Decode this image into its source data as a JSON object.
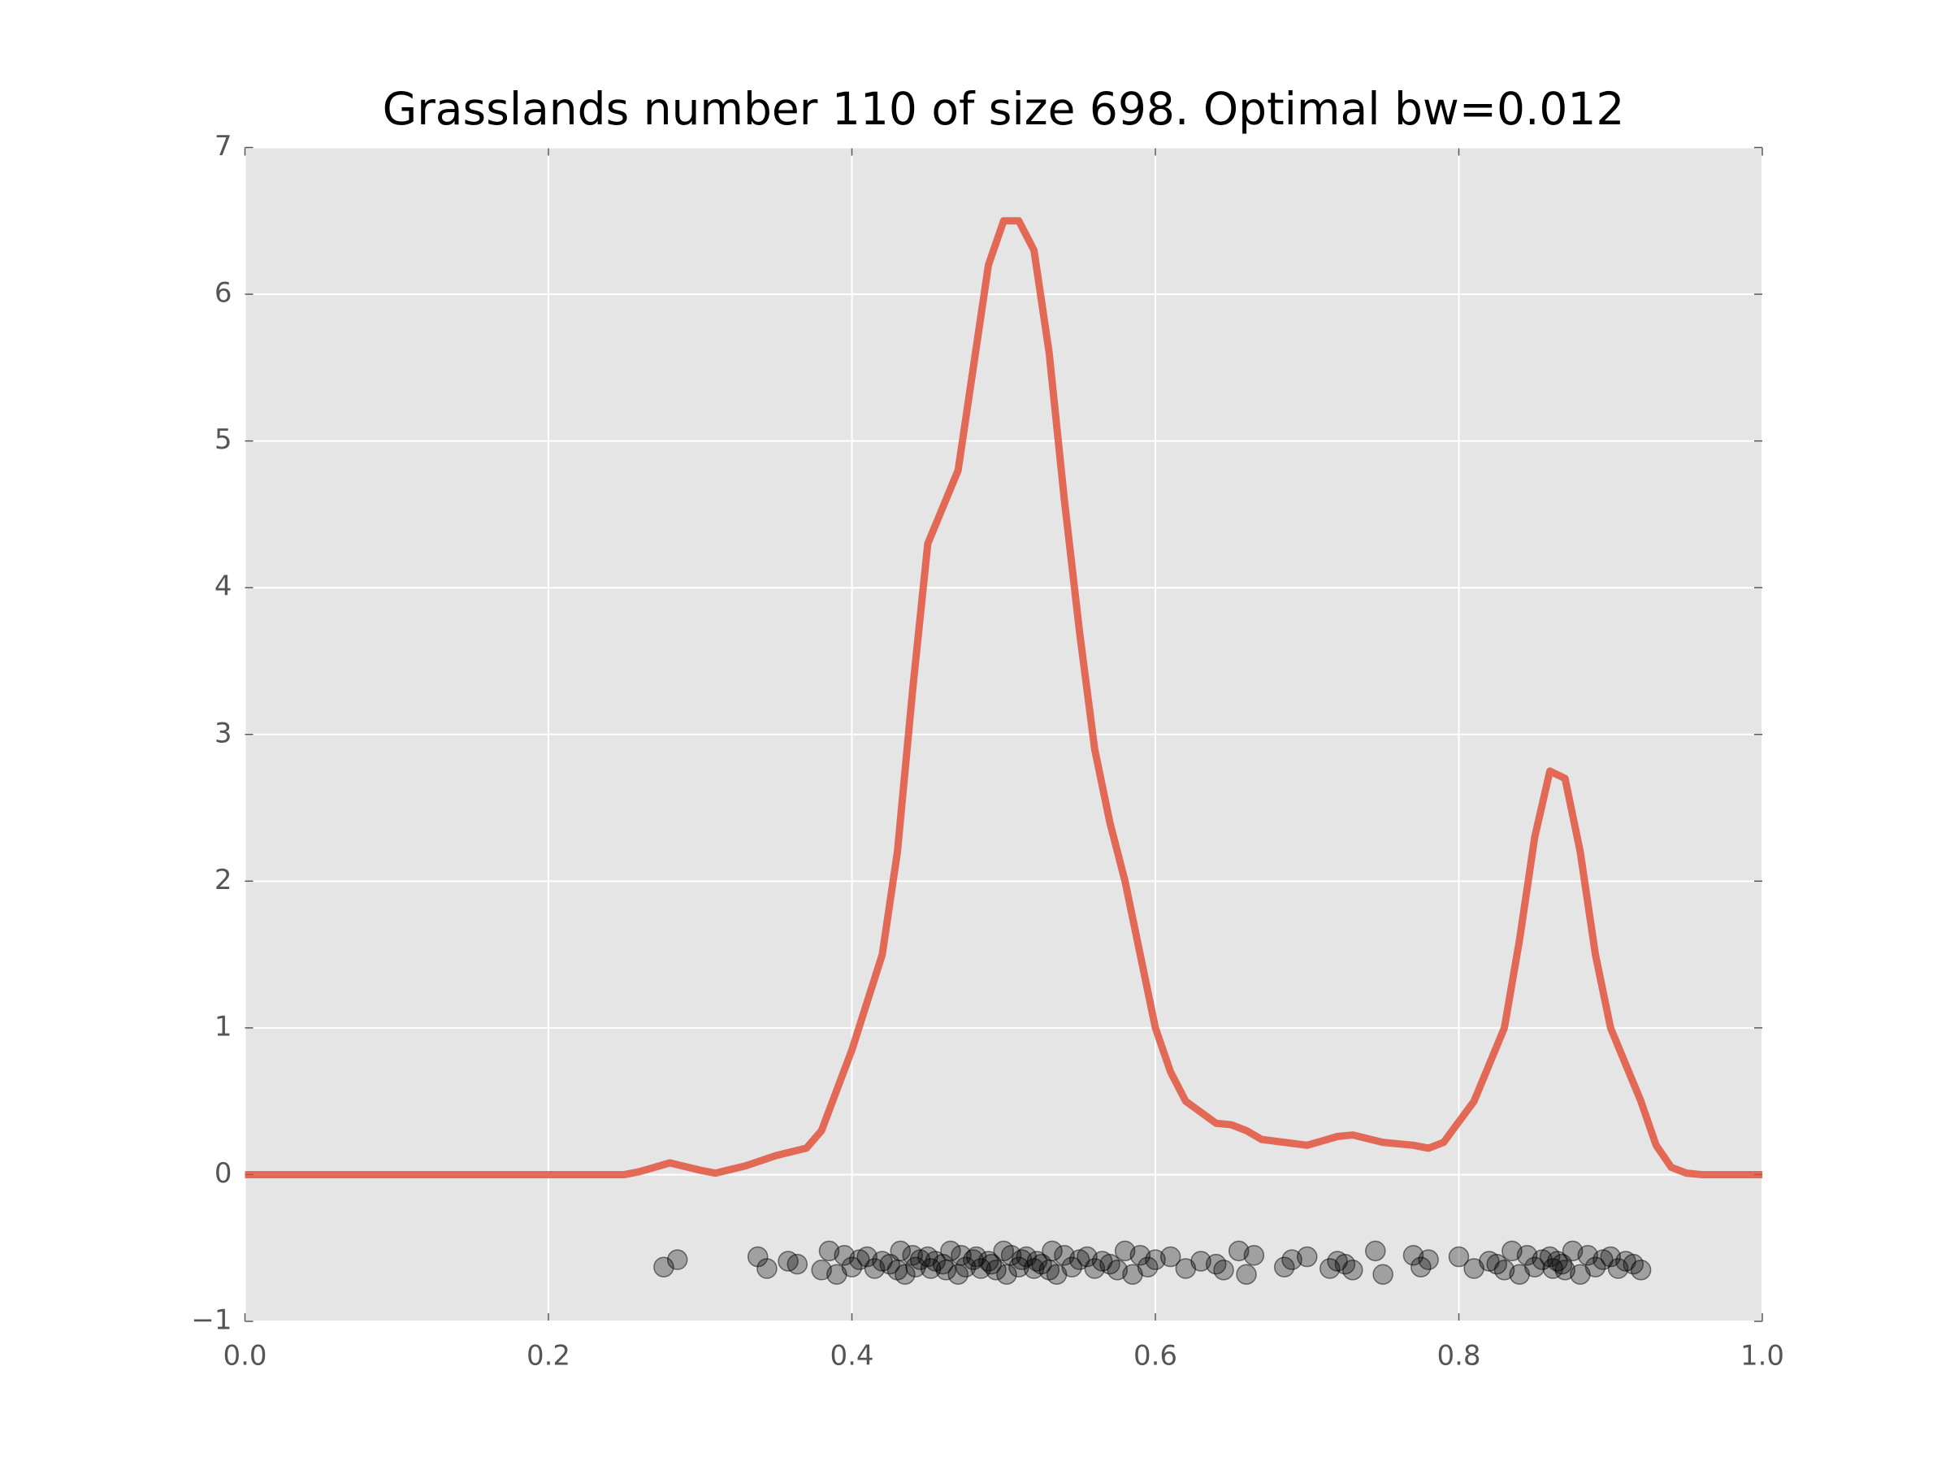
{
  "chart_data": {
    "type": "line",
    "title": "Grasslands number 110 of size 698. Optimal bw=0.012",
    "xlim": [
      0,
      1
    ],
    "ylim": [
      -1,
      7
    ],
    "xticks": [
      {
        "value": 0,
        "label": "0.0"
      },
      {
        "value": 0.2,
        "label": "0.2"
      },
      {
        "value": 0.4,
        "label": "0.4"
      },
      {
        "value": 0.6,
        "label": "0.6"
      },
      {
        "value": 0.8,
        "label": "0.8"
      },
      {
        "value": 1,
        "label": "1.0"
      }
    ],
    "yticks": [
      {
        "value": -1,
        "label": "−1"
      },
      0,
      1,
      2,
      3,
      4,
      5,
      6,
      7
    ],
    "grid": true,
    "background": "#e5e5e5",
    "series": [
      {
        "type": "line",
        "color": "#e24a33",
        "x": [
          0,
          0.25,
          0.26,
          0.28,
          0.3,
          0.31,
          0.33,
          0.35,
          0.37,
          0.38,
          0.4,
          0.42,
          0.43,
          0.44,
          0.45,
          0.47,
          0.48,
          0.49,
          0.5,
          0.51,
          0.52,
          0.53,
          0.54,
          0.55,
          0.56,
          0.57,
          0.58,
          0.59,
          0.6,
          0.61,
          0.62,
          0.64,
          0.65,
          0.66,
          0.67,
          0.7,
          0.72,
          0.73,
          0.75,
          0.77,
          0.78,
          0.79,
          0.81,
          0.83,
          0.84,
          0.85,
          0.86,
          0.87,
          0.88,
          0.89,
          0.9,
          0.92,
          0.93,
          0.94,
          0.95,
          0.96,
          1
        ],
        "values": [
          0,
          0,
          0.02,
          0.08,
          0.03,
          0.01,
          0.06,
          0.13,
          0.18,
          0.3,
          0.85,
          1.5,
          2.2,
          3.3,
          4.3,
          4.8,
          5.5,
          6.2,
          6.5,
          6.5,
          6.3,
          5.6,
          4.6,
          3.7,
          2.9,
          2.4,
          2.0,
          1.5,
          1.0,
          0.7,
          0.5,
          0.35,
          0.34,
          0.3,
          0.24,
          0.2,
          0.26,
          0.27,
          0.22,
          0.2,
          0.18,
          0.22,
          0.5,
          1.0,
          1.6,
          2.3,
          2.75,
          2.7,
          2.2,
          1.5,
          1.0,
          0.5,
          0.2,
          0.05,
          0.01,
          0,
          0
        ]
      },
      {
        "type": "scatter",
        "color": "#000000",
        "x": [
          0.276,
          0.285,
          0.338,
          0.344,
          0.358,
          0.364,
          0.38,
          0.385,
          0.39,
          0.395,
          0.4,
          0.405,
          0.41,
          0.415,
          0.42,
          0.425,
          0.43,
          0.432,
          0.435,
          0.44,
          0.442,
          0.445,
          0.45,
          0.452,
          0.455,
          0.46,
          0.462,
          0.465,
          0.47,
          0.472,
          0.475,
          0.48,
          0.482,
          0.485,
          0.49,
          0.492,
          0.495,
          0.5,
          0.502,
          0.505,
          0.51,
          0.512,
          0.515,
          0.52,
          0.522,
          0.525,
          0.53,
          0.532,
          0.535,
          0.54,
          0.545,
          0.55,
          0.555,
          0.56,
          0.565,
          0.57,
          0.575,
          0.58,
          0.585,
          0.59,
          0.595,
          0.6,
          0.61,
          0.62,
          0.63,
          0.64,
          0.645,
          0.655,
          0.66,
          0.665,
          0.685,
          0.69,
          0.7,
          0.715,
          0.72,
          0.725,
          0.73,
          0.745,
          0.75,
          0.77,
          0.775,
          0.78,
          0.8,
          0.81,
          0.82,
          0.825,
          0.83,
          0.835,
          0.84,
          0.845,
          0.85,
          0.855,
          0.86,
          0.862,
          0.865,
          0.868,
          0.87,
          0.875,
          0.88,
          0.885,
          0.89,
          0.895,
          0.9,
          0.905,
          0.91,
          0.915,
          0.92
        ],
        "values": [
          -0.63,
          -0.58,
          -0.56,
          -0.64,
          -0.59,
          -0.61,
          -0.65,
          -0.52,
          -0.68,
          -0.55,
          -0.63,
          -0.58,
          -0.56,
          -0.64,
          -0.59,
          -0.61,
          -0.65,
          -0.52,
          -0.68,
          -0.55,
          -0.63,
          -0.58,
          -0.56,
          -0.64,
          -0.59,
          -0.61,
          -0.65,
          -0.52,
          -0.68,
          -0.55,
          -0.63,
          -0.58,
          -0.56,
          -0.64,
          -0.59,
          -0.61,
          -0.65,
          -0.52,
          -0.68,
          -0.55,
          -0.63,
          -0.58,
          -0.56,
          -0.64,
          -0.59,
          -0.61,
          -0.65,
          -0.52,
          -0.68,
          -0.55,
          -0.63,
          -0.58,
          -0.56,
          -0.64,
          -0.59,
          -0.61,
          -0.65,
          -0.52,
          -0.68,
          -0.55,
          -0.63,
          -0.58,
          -0.56,
          -0.64,
          -0.59,
          -0.61,
          -0.65,
          -0.52,
          -0.68,
          -0.55,
          -0.63,
          -0.58,
          -0.56,
          -0.64,
          -0.59,
          -0.61,
          -0.65,
          -0.52,
          -0.68,
          -0.55,
          -0.63,
          -0.58,
          -0.56,
          -0.64,
          -0.59,
          -0.61,
          -0.65,
          -0.52,
          -0.68,
          -0.55,
          -0.63,
          -0.58,
          -0.56,
          -0.64,
          -0.59,
          -0.61,
          -0.65,
          -0.52,
          -0.68,
          -0.55,
          -0.63,
          -0.58,
          -0.56,
          -0.64,
          -0.59,
          -0.61,
          -0.65
        ]
      }
    ]
  }
}
